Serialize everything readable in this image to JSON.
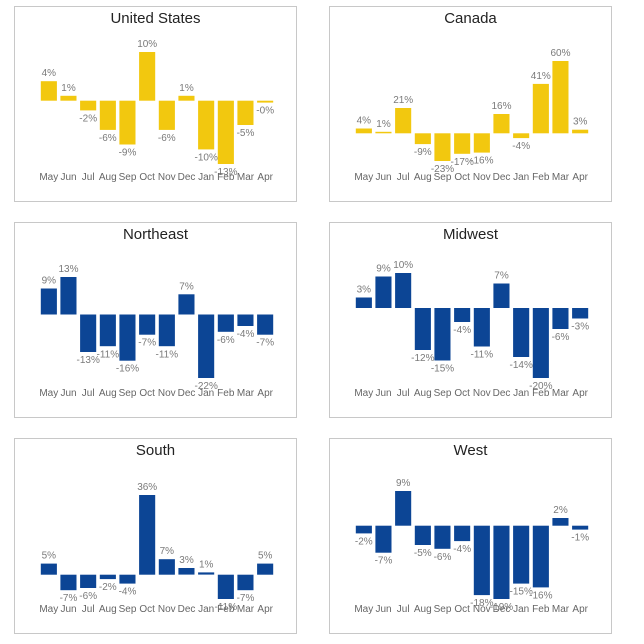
{
  "colors": {
    "gold": "#F2C80F",
    "navy": "#0C4595",
    "label": "#7a7a7a",
    "axis": "#666666"
  },
  "chart_data": [
    {
      "type": "bar",
      "title": "United States",
      "color": "#F2C80F",
      "categories": [
        "May",
        "Jun",
        "Jul",
        "Aug",
        "Sep",
        "Oct",
        "Nov",
        "Dec",
        "Jan",
        "Feb",
        "Mar",
        "Apr"
      ],
      "values": [
        4,
        1,
        -2,
        -6,
        -9,
        10,
        -6,
        1,
        -10,
        -13,
        -5,
        -0.4
      ],
      "labels": [
        "4%",
        "1%",
        "-2%",
        "-6%",
        "-9%",
        "10%",
        "-6%",
        "1%",
        "-10%",
        "-13%",
        "-5%",
        "-0%"
      ],
      "ylim": [
        -13,
        10
      ]
    },
    {
      "type": "bar",
      "title": "Canada",
      "color": "#F2C80F",
      "categories": [
        "May",
        "Jun",
        "Jul",
        "Aug",
        "Sep",
        "Oct",
        "Nov",
        "Dec",
        "Jan",
        "Feb",
        "Mar",
        "Apr"
      ],
      "values": [
        4,
        1,
        21,
        -9,
        -23,
        -17,
        -16,
        16,
        -4,
        41,
        60,
        3
      ],
      "labels": [
        "4%",
        "1%",
        "21%",
        "-9%",
        "-23%",
        "-17%",
        "-16%",
        "16%",
        "-4%",
        "41%",
        "60%",
        "3%"
      ],
      "ylim": [
        -23,
        60
      ]
    },
    {
      "type": "bar",
      "title": "Northeast",
      "color": "#0C4595",
      "categories": [
        "May",
        "Jun",
        "Jul",
        "Aug",
        "Sep",
        "Oct",
        "Nov",
        "Dec",
        "Jan",
        "Feb",
        "Mar",
        "Apr"
      ],
      "values": [
        9,
        13,
        -13,
        -11,
        -16,
        -7,
        -11,
        7,
        -22,
        -6,
        -4,
        -7
      ],
      "labels": [
        "9%",
        "13%",
        "-13%",
        "-11%",
        "-16%",
        "-7%",
        "-11%",
        "7%",
        "-22%",
        "-6%",
        "-4%",
        "-7%"
      ],
      "ylim": [
        -22,
        13
      ]
    },
    {
      "type": "bar",
      "title": "Midwest",
      "color": "#0C4595",
      "categories": [
        "May",
        "Jun",
        "Jul",
        "Aug",
        "Sep",
        "Oct",
        "Nov",
        "Dec",
        "Jan",
        "Feb",
        "Mar",
        "Apr"
      ],
      "values": [
        3,
        9,
        10,
        -12,
        -15,
        -4,
        -11,
        7,
        -14,
        -20,
        -6,
        -3
      ],
      "labels": [
        "3%",
        "9%",
        "10%",
        "-12%",
        "-15%",
        "-4%",
        "-11%",
        "7%",
        "-14%",
        "-20%",
        "-6%",
        "-3%"
      ],
      "ylim": [
        -20,
        10
      ]
    },
    {
      "type": "bar",
      "title": "South",
      "color": "#0C4595",
      "categories": [
        "May",
        "Jun",
        "Jul",
        "Aug",
        "Sep",
        "Oct",
        "Nov",
        "Dec",
        "Jan",
        "Feb",
        "Mar",
        "Apr"
      ],
      "values": [
        5,
        -7,
        -6,
        -2,
        -4,
        36,
        7,
        3,
        1,
        -11,
        -7,
        5
      ],
      "labels": [
        "5%",
        "-7%",
        "-6%",
        "-2%",
        "-4%",
        "36%",
        "7%",
        "3%",
        "1%",
        "-11%",
        "-7%",
        "5%"
      ],
      "ylim": [
        -11,
        36
      ]
    },
    {
      "type": "bar",
      "title": "West",
      "color": "#0C4595",
      "categories": [
        "May",
        "Jun",
        "Jul",
        "Aug",
        "Sep",
        "Oct",
        "Nov",
        "Dec",
        "Jan",
        "Feb",
        "Mar",
        "Apr"
      ],
      "values": [
        -2,
        -7,
        9,
        -5,
        -6,
        -4,
        -18,
        -19,
        -15,
        -16,
        2,
        -1
      ],
      "labels": [
        "-2%",
        "-7%",
        "9%",
        "-5%",
        "-6%",
        "-4%",
        "-18%",
        "-19%",
        "-15%",
        "-16%",
        "2%",
        "-1%"
      ],
      "ylim": [
        -19,
        9
      ]
    }
  ]
}
